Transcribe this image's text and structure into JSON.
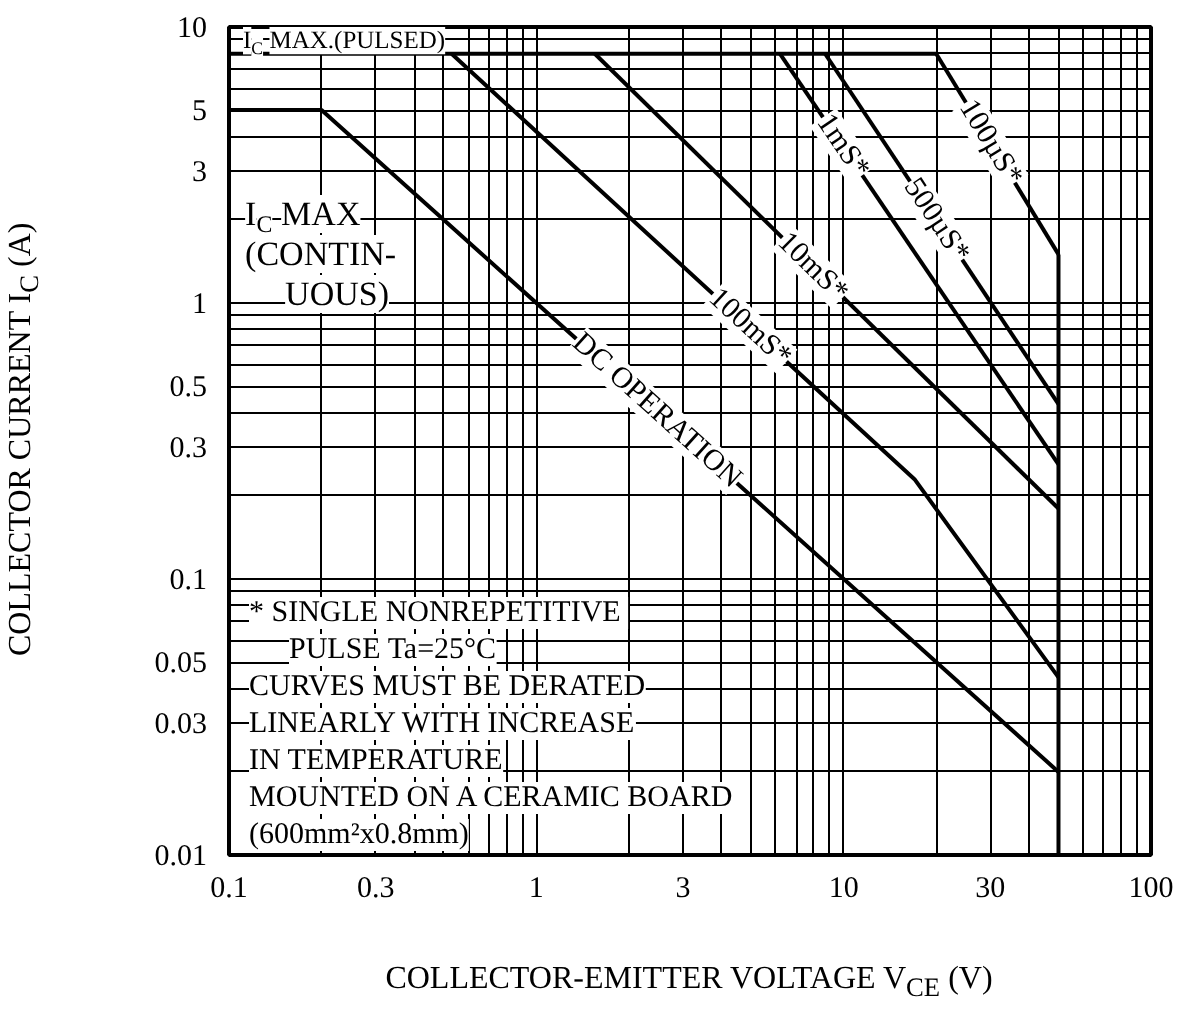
{
  "chart_data": {
    "type": "line",
    "xlabel": "COLLECTOR-EMITTER VOLTAGE V$_{CE}$ (V)",
    "ylabel": "COLLECTOR CURRENT I$_{C}$ (A)",
    "log": "xy",
    "xlim": [
      0.1,
      100
    ],
    "ylim": [
      0.01,
      10
    ],
    "xticks": [
      0.1,
      0.3,
      1,
      3,
      10,
      30,
      100
    ],
    "yticks": [
      0.01,
      0.03,
      0.05,
      0.1,
      0.3,
      0.5,
      1,
      3,
      5,
      10
    ],
    "grid": true,
    "marker": "none",
    "line_style": "solid",
    "series": [
      {
        "color": "#000000",
        "x": [
          0.1,
          20
        ],
        "values": [
          8,
          8
        ]
      },
      {
        "color": "#000000",
        "x": [
          0.1,
          0.2,
          50
        ],
        "values": [
          5,
          5,
          0.02
        ]
      },
      {
        "color": "#000000",
        "x": [
          0.53,
          17,
          50
        ],
        "values": [
          8,
          0.23,
          0.044
        ]
      },
      {
        "color": "#000000",
        "x": [
          1.55,
          50
        ],
        "values": [
          8,
          0.18
        ]
      },
      {
        "color": "#000000",
        "x": [
          6.2,
          50
        ],
        "values": [
          8,
          0.26
        ]
      },
      {
        "color": "#000000",
        "x": [
          8.7,
          50
        ],
        "values": [
          8,
          0.43
        ]
      },
      {
        "color": "#000000",
        "x": [
          20,
          50
        ],
        "values": [
          8,
          1.5
        ]
      },
      {
        "color": "#000000",
        "x": [
          50,
          50
        ],
        "values": [
          1.5,
          0.01
        ]
      }
    ],
    "annotations": [
      {
        "text": "I$_{C}$ MAX.(PULSED)",
        "x": 0.1,
        "y": 8
      },
      {
        "text": "I$_{C}$ MAX\n(CONTIN-\nUOUS)",
        "x": 0.15,
        "y": 5
      },
      {
        "text": "100µS*",
        "x": 30,
        "y": 3.81
      },
      {
        "text": "500µS*",
        "x": 20,
        "y": 1.99
      },
      {
        "text": "1mS*",
        "x": 10,
        "y": 3.65
      },
      {
        "text": "10mS*",
        "x": 8,
        "y": 1.33
      },
      {
        "text": "100mS*",
        "x": 5,
        "y": 0.805
      },
      {
        "text": "DC OPERATION",
        "x": 2.5,
        "y": 0.4
      },
      "*  SINGLE NONREPETITIVE",
      "    PULSE Ta=25°C",
      "CURVES MUST BE DERATED",
      "LINEARLY WITH INCREASE",
      "IN TEMPERATURE",
      "MOUNTED ON A CERAMIC BOARD",
      "(600mm²x0.8mm)"
    ]
  }
}
